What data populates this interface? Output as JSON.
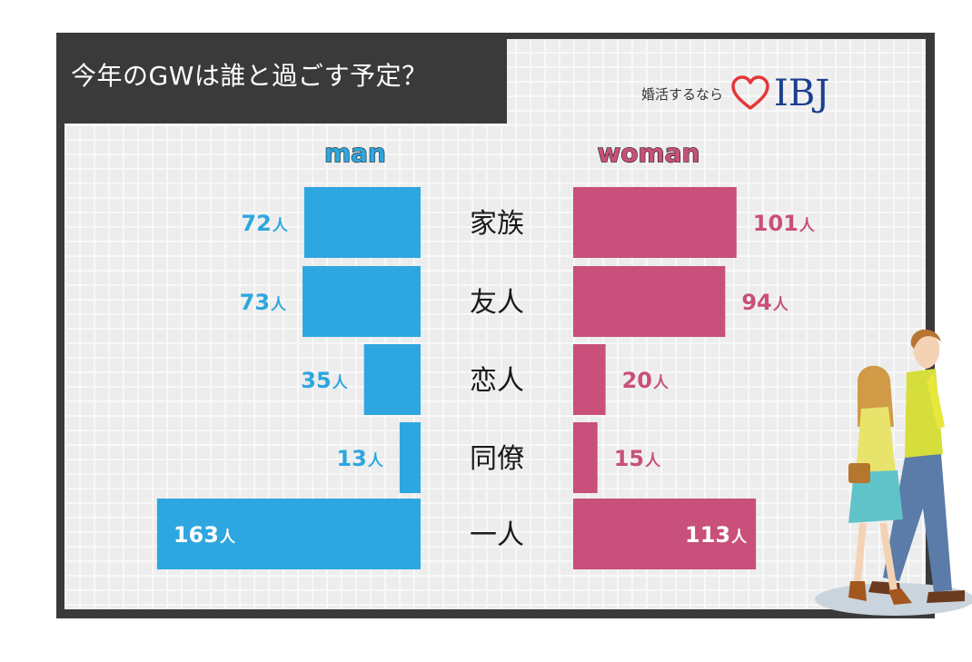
{
  "header": {
    "title": "今年のGWは誰と過ごす予定？",
    "brand_tagline": "婚活するなら",
    "brand_name": "IBJ",
    "brand_icon": "heart-outline-icon"
  },
  "chart_data": {
    "type": "bar",
    "orientation": "horizontal-butterfly",
    "title": "今年のGWは誰と過ごす予定？",
    "categories": [
      "家族",
      "友人",
      "恋人",
      "同僚",
      "一人"
    ],
    "unit": "人",
    "series": [
      {
        "name": "man",
        "values": [
          72,
          73,
          35,
          13,
          163
        ],
        "color": "#2ea6e0"
      },
      {
        "name": "woman",
        "values": [
          101,
          94,
          20,
          15,
          113
        ],
        "color": "#c8507a"
      }
    ]
  },
  "colors": {
    "frame": "#3a3a3a",
    "background": "#ededed",
    "man": "#2ea6e0",
    "woman": "#c8507a",
    "brand": "#1c3f8f"
  }
}
